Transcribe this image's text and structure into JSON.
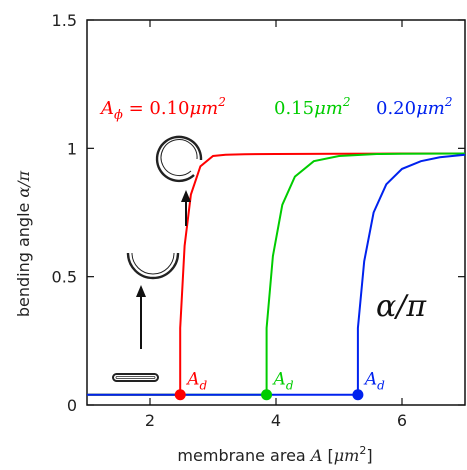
{
  "chart_data": {
    "type": "line",
    "title": "",
    "xlabel_text": "membrane area",
    "xlabel_var": "A",
    "xlabel_unit_open": "[",
    "xlabel_unit_mu": "μm",
    "xlabel_unit_exp": "2",
    "xlabel_unit_close": "]",
    "ylabel_text": "bending angle",
    "ylabel_var": "α/π",
    "xlim": [
      1.0,
      7.0
    ],
    "ylim": [
      0.0,
      1.5
    ],
    "xticks": [
      2,
      4,
      6
    ],
    "xtick_labels": [
      "2",
      "4",
      "6"
    ],
    "yticks": [
      0,
      0.5,
      1,
      1.5
    ],
    "ytick_labels": [
      "0",
      "0.5",
      "1",
      "1.5"
    ],
    "grid": false,
    "inline_label": "α/π",
    "series": [
      {
        "name": "A_ϕ = 0.10μm²",
        "label_sub": "ϕ",
        "label_prefix": "A",
        "label_value": " = 0.10",
        "label_unit": "μm",
        "label_exp": "2",
        "color": "#ff0000",
        "x": [
          1.0,
          2.48,
          2.48,
          2.55,
          2.65,
          2.8,
          3.0,
          3.2,
          3.5,
          4.0,
          5.0,
          6.0,
          7.0
        ],
        "y": [
          0.04,
          0.04,
          0.3,
          0.62,
          0.82,
          0.93,
          0.97,
          0.975,
          0.977,
          0.978,
          0.979,
          0.98,
          0.98
        ]
      },
      {
        "name": "0.15μm²",
        "label_value": "0.15",
        "label_unit": "μm",
        "label_exp": "2",
        "color": "#00cc00",
        "x": [
          1.0,
          3.85,
          3.85,
          3.95,
          4.1,
          4.3,
          4.6,
          5.0,
          5.6,
          6.0,
          7.0
        ],
        "y": [
          0.04,
          0.04,
          0.3,
          0.58,
          0.78,
          0.89,
          0.95,
          0.97,
          0.978,
          0.979,
          0.98
        ]
      },
      {
        "name": "0.20μm²",
        "label_value": "0.20",
        "label_unit": "μm",
        "label_exp": "2",
        "color": "#0022ee",
        "x": [
          1.0,
          5.3,
          5.3,
          5.4,
          5.55,
          5.75,
          6.0,
          6.3,
          6.6,
          7.0
        ],
        "y": [
          0.04,
          0.04,
          0.3,
          0.56,
          0.75,
          0.86,
          0.92,
          0.95,
          0.965,
          0.975
        ]
      }
    ],
    "markers": [
      {
        "x": 2.48,
        "y": 0.04,
        "color": "#ff0000",
        "label": "A",
        "sub": "d"
      },
      {
        "x": 3.85,
        "y": 0.04,
        "color": "#00cc00",
        "label": "A",
        "sub": "d"
      },
      {
        "x": 5.3,
        "y": 0.04,
        "color": "#0022ee",
        "label": "A",
        "sub": "d"
      }
    ],
    "shapes": [
      "flat-vesicle",
      "cup-vesicle",
      "closed-vesicle"
    ]
  }
}
